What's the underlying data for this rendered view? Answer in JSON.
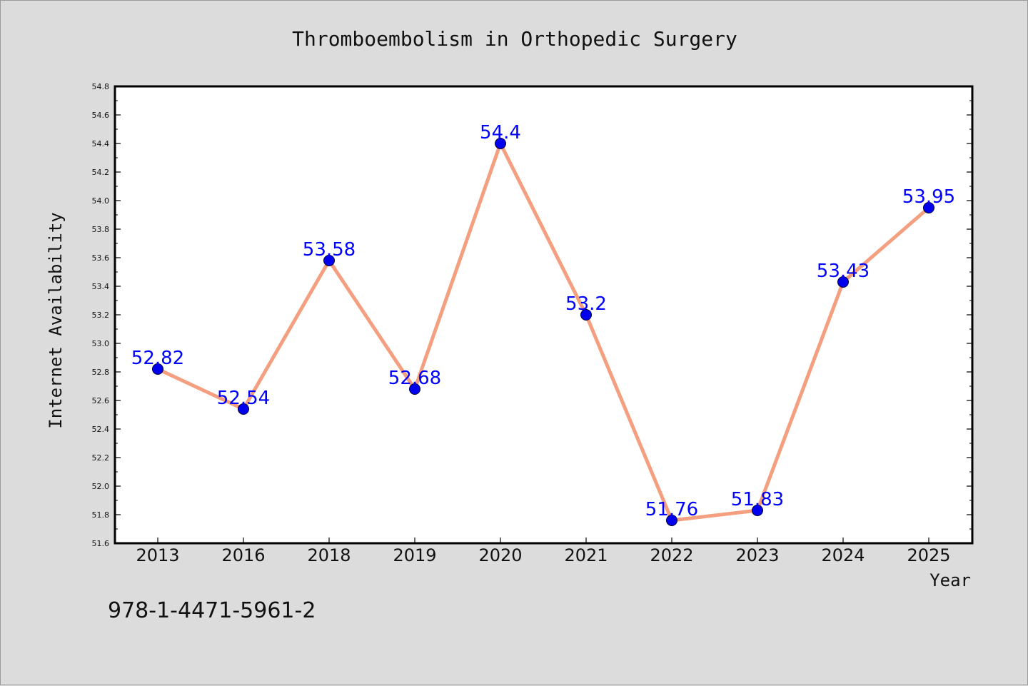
{
  "chart_data": {
    "type": "line",
    "title": "Thromboembolism in Orthopedic Surgery",
    "xlabel": "Year",
    "ylabel": "Internet Availability",
    "categories": [
      "2013",
      "2016",
      "2018",
      "2019",
      "2020",
      "2021",
      "2022",
      "2023",
      "2024",
      "2025"
    ],
    "series": [
      {
        "values": [
          52.82,
          52.54,
          53.58,
          52.68,
          54.4,
          53.2,
          51.76,
          51.83,
          53.43,
          53.95
        ],
        "data_labels": [
          "52.82",
          "52.54",
          "53.58",
          "52.68",
          "54.4",
          "53.2",
          "51.76",
          "51.83",
          "53.43",
          "53.95"
        ],
        "line_color": "#f4a080",
        "marker_color": "#0000ee"
      }
    ],
    "ylim": [
      51.6,
      54.8
    ],
    "yticks": [
      "51.6",
      "51.8",
      "52.0",
      "52.2",
      "52.4",
      "52.6",
      "52.8",
      "53.0",
      "53.2",
      "53.4",
      "53.6",
      "53.8",
      "54.0",
      "54.2",
      "54.4",
      "54.6",
      "54.8"
    ],
    "grid": false,
    "legend": "none"
  },
  "footer": {
    "isbn": "978-1-4471-5961-2"
  }
}
